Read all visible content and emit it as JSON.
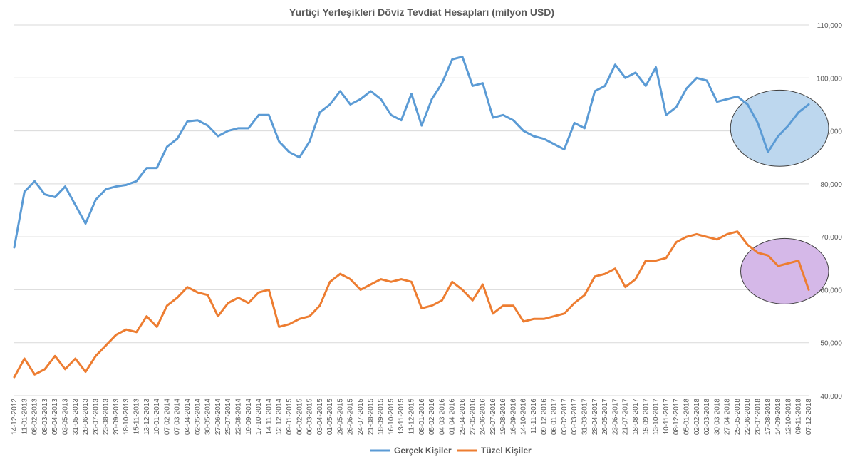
{
  "chart_data": {
    "type": "line",
    "title": "Yurtiçi Yerleşikleri Döviz Tevdiat Hesapları (milyon USD)",
    "xlabel": "",
    "ylabel": "",
    "ylim": [
      40000,
      110000
    ],
    "y_ticks": [
      40000,
      50000,
      60000,
      70000,
      80000,
      90000,
      100000,
      110000
    ],
    "y_tick_labels": [
      "40,000",
      "50,000",
      "60,000",
      "70,000",
      "80,000",
      "90,000",
      "100,000",
      "110,000"
    ],
    "y_axis_side": "right",
    "grid": true,
    "legend_position": "bottom",
    "colors": {
      "Gerçek Kişiler": "#5b9bd5",
      "Tüzel Kişiler": "#ed7d31",
      "grid": "#d9d9d9",
      "text": "#595959"
    },
    "x_tick_labels": [
      "14-12-2012",
      "11-01-2013",
      "08-02-2013",
      "08-03-2013",
      "05-04-2013",
      "03-05-2013",
      "31-05-2013",
      "28-06-2013",
      "26-07-2013",
      "23-08-2013",
      "20-09-2013",
      "18-10-2013",
      "15-11-2013",
      "13-12-2013",
      "10-01-2014",
      "07-02-2014",
      "07-03-2014",
      "04-04-2014",
      "02-05-2014",
      "30-05-2014",
      "27-06-2014",
      "25-07-2014",
      "22-08-2014",
      "19-09-2014",
      "17-10-2014",
      "14-11-2014",
      "12-12-2014",
      "09-01-2015",
      "06-02-2015",
      "06-03-2015",
      "03-04-2015",
      "01-05-2015",
      "29-05-2015",
      "26-06-2015",
      "24-07-2015",
      "21-08-2015",
      "18-09-2015",
      "16-10-2015",
      "13-11-2015",
      "11-12-2015",
      "08-01-2016",
      "05-02-2016",
      "04-03-2016",
      "01-04-2016",
      "29-04-2016",
      "27-05-2016",
      "24-06-2016",
      "22-07-2016",
      "19-08-2016",
      "16-09-2016",
      "14-10-2016",
      "11-11-2016",
      "09-12-2016",
      "06-01-2017",
      "03-02-2017",
      "03-03-2017",
      "31-03-2017",
      "28-04-2017",
      "26-05-2017",
      "23-06-2017",
      "21-07-2017",
      "18-08-2017",
      "15-09-2017",
      "13-10-2017",
      "10-11-2017",
      "08-12-2017",
      "05-01-2018",
      "02-02-2018",
      "02-03-2018",
      "30-03-2018",
      "27-04-2018",
      "25-05-2018",
      "22-06-2018",
      "20-07-2018",
      "17-08-2018",
      "14-09-2018",
      "12-10-2018",
      "09-11-2018",
      "07-12-2018"
    ],
    "series": [
      {
        "name": "Gerçek Kişiler",
        "values": [
          68000,
          78500,
          80500,
          78000,
          77500,
          79500,
          76000,
          72500,
          77000,
          79000,
          79500,
          79800,
          80500,
          83000,
          83000,
          87000,
          88500,
          91800,
          92000,
          91000,
          89000,
          90000,
          90500,
          90500,
          93000,
          93000,
          88000,
          86000,
          85000,
          88000,
          93500,
          95000,
          97500,
          95000,
          96000,
          97500,
          96000,
          93000,
          92000,
          97000,
          91000,
          96000,
          99000,
          103500,
          104000,
          98500,
          99000,
          92500,
          93000,
          92000,
          90000,
          89000,
          88500,
          87500,
          86500,
          91500,
          90500,
          97500,
          98500,
          102500,
          100000,
          101000,
          98500,
          102000,
          93000,
          94500,
          98000,
          100000,
          99500,
          95500,
          96000,
          96500,
          95000,
          91500,
          86000,
          89000,
          91000,
          93500,
          95000
        ]
      },
      {
        "name": "Tüzel Kişiler",
        "values": [
          43500,
          47000,
          44000,
          45000,
          47500,
          45000,
          47000,
          44500,
          47500,
          49500,
          51500,
          52500,
          52000,
          55000,
          53000,
          57000,
          58500,
          60500,
          59500,
          59000,
          55000,
          57500,
          58500,
          57500,
          59500,
          60000,
          53000,
          53500,
          54500,
          55000,
          57000,
          61500,
          63000,
          62000,
          60000,
          61000,
          62000,
          61500,
          62000,
          61500,
          56500,
          57000,
          58000,
          61500,
          60000,
          58000,
          61000,
          55500,
          57000,
          57000,
          54000,
          54500,
          54500,
          55000,
          55500,
          57500,
          59000,
          62500,
          63000,
          64000,
          60500,
          62000,
          65500,
          65500,
          66000,
          69000,
          70000,
          70500,
          70000,
          69500,
          70500,
          71000,
          68500,
          67000,
          66500,
          64500,
          65000,
          65500,
          60000
        ]
      }
    ],
    "annotations": [
      {
        "shape": "ellipse",
        "highlights": "Gerçek Kişiler",
        "color": "#bdd7ee"
      },
      {
        "shape": "ellipse",
        "highlights": "Tüzel Kişiler",
        "color": "#d5b8e8"
      }
    ]
  }
}
